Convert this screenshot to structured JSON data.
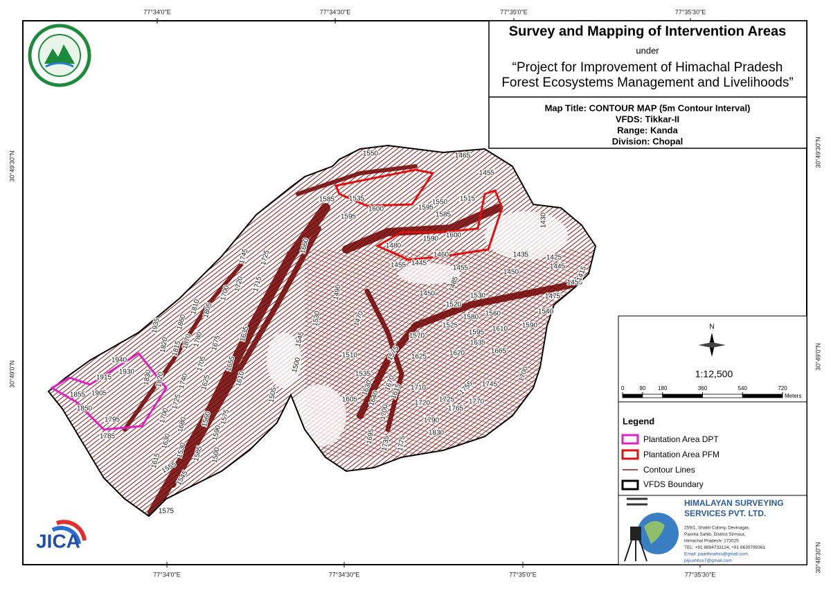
{
  "map": {
    "title_block": {
      "heading": "Survey and Mapping of Intervention Areas",
      "under": "under",
      "project_line1": "“Project for Improvement of Himachal Pradesh",
      "project_line2": "Forest Ecosystems Management and Livelihoods”"
    },
    "info": {
      "map_title": "Map Title: CONTOUR MAP (5m Contour Interval)",
      "vfds": "VFDS: Tikkar-II",
      "range": "Range: Kanda",
      "division": "Division: Chopal"
    },
    "graticule": {
      "top": [
        "77°34'0\"E",
        "77°34'30\"E",
        "77°35'0\"E",
        "77°35'30\"E"
      ],
      "bottom": [
        "77°34'0\"E",
        "77°34'30\"E",
        "77°35'0\"E",
        "77°35'30\"E"
      ],
      "left": [
        "30°49'30\"N",
        "30°49'0\"N"
      ],
      "right": [
        "30°49'30\"N",
        "30°49'0\"N",
        "30°48'30\"N"
      ]
    },
    "north": "N",
    "scale": {
      "ratio": "1:12,500",
      "ticks": [
        0,
        90,
        180,
        360,
        540,
        720
      ],
      "unit": "Meters"
    },
    "legend": {
      "title": "Legend",
      "items": [
        "Plantation Area DPT",
        "Plantation Area PFM",
        "Contour Lines",
        "VFDS Boundary"
      ]
    },
    "company": {
      "name_line1": "HIMALAYAN SURVEYING",
      "name_line2": "SERVICES PVT. LTD.",
      "address": [
        "259/1, Shakti Colony, Devinagar,",
        "Paonta Sahib, District Sirmour,",
        "Himachal Pradesh- 173025",
        "TEL: +91 8894733124, +91 8630799361",
        "Email: paarthnahss@gmail.com,",
        "piyushhss7@gmail.com"
      ]
    },
    "logo_text": "JICA",
    "contour_labels": [
      1550,
      1465,
      1455,
      1585,
      1535,
      1600,
      1550,
      1515,
      1595,
      1585,
      1595,
      1600,
      1590,
      1480,
      1460,
      1445,
      1455,
      1455,
      1435,
      1425,
      1445,
      1455,
      1450,
      1430,
      1415,
      1475,
      1540,
      1590,
      1530,
      1450,
      1485,
      1520,
      1580,
      1560,
      1525,
      1595,
      1610,
      1635,
      1570,
      1620,
      1665,
      1625,
      1510,
      1535,
      1575,
      1490,
      1470,
      1530,
      1660,
      1725,
      1745,
      1720,
      1715,
      1700,
      1805,
      1810,
      1860,
      1870,
      1815,
      1935,
      1820,
      1780,
      1675,
      1635,
      1705,
      1625,
      1655,
      1610,
      1545,
      1500,
      1505,
      1940,
      1915,
      1930,
      1855,
      1905,
      1850,
      1830,
      1820,
      1795,
      1785,
      1740,
      1725,
      1700,
      1680,
      1630,
      1615,
      1555,
      1530,
      1585,
      1545,
      1560,
      1590,
      1575,
      1500,
      1575,
      1605,
      1630,
      1670,
      1640,
      1615,
      1710,
      1720,
      1725,
      1755,
      1745,
      1770,
      1765,
      1790,
      1830,
      1695,
      1700,
      1735,
      1775,
      1700
    ]
  }
}
